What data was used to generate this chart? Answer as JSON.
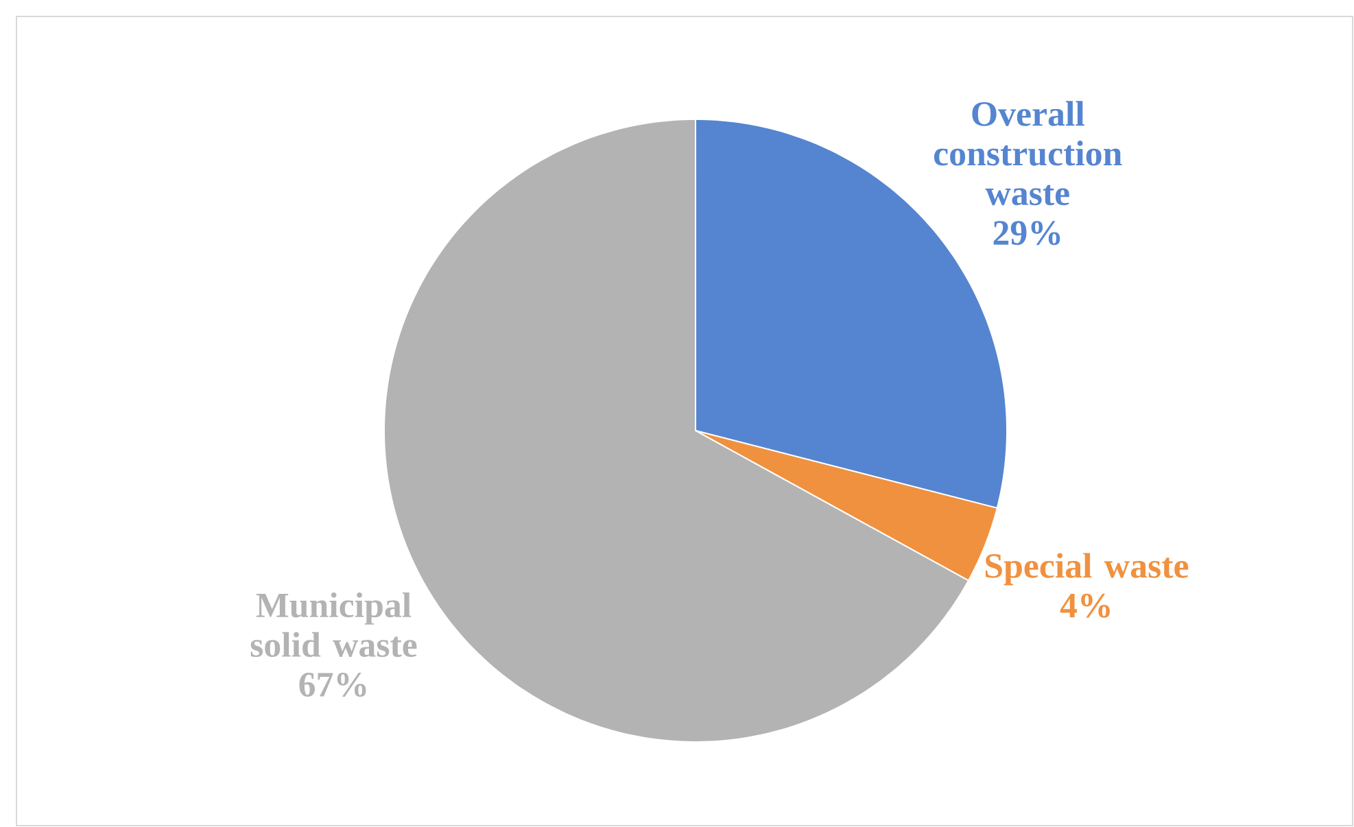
{
  "chart_data": {
    "type": "pie",
    "categories": [
      "Overall construction waste",
      "Special waste",
      "Municipal solid waste"
    ],
    "values": [
      29,
      4,
      67
    ],
    "colors": [
      "#5585d0",
      "#f0913f",
      "#b3b3b3"
    ],
    "value_labels": [
      "29%",
      "4%",
      "67%"
    ]
  }
}
